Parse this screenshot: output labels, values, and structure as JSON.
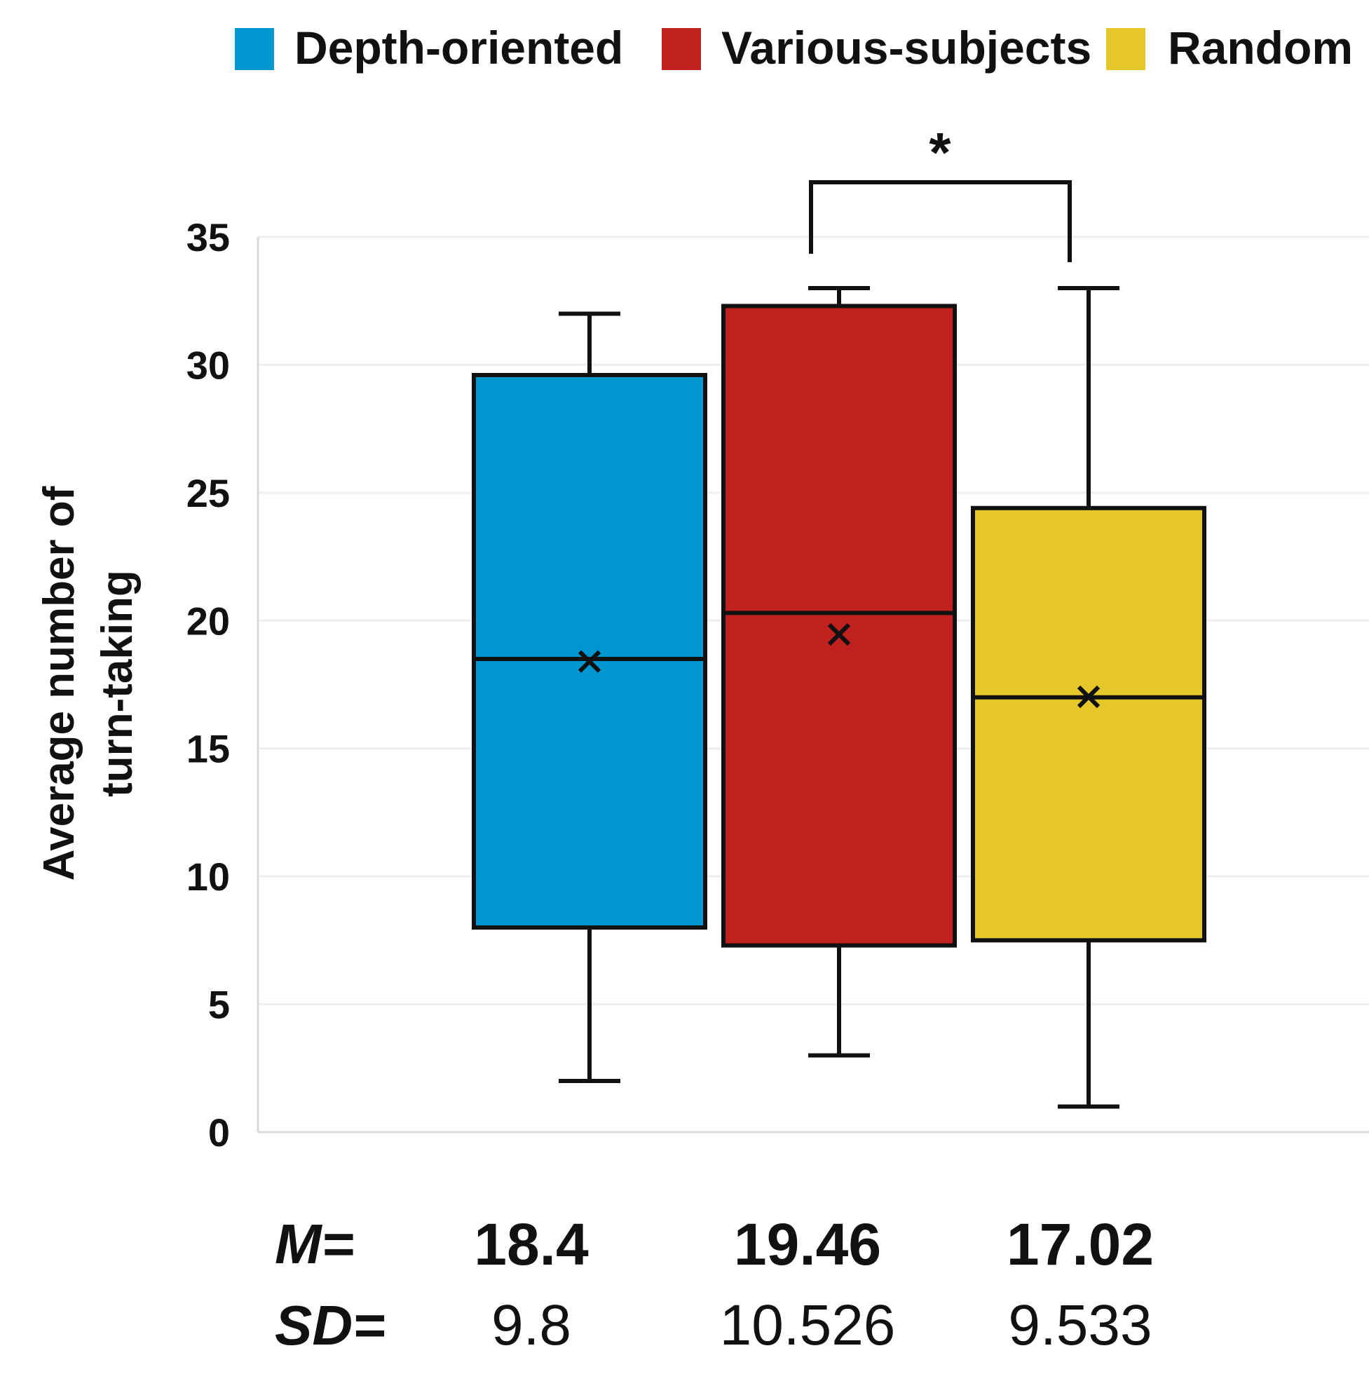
{
  "chart_data": {
    "type": "box",
    "ylabel_lines": [
      "Average number of",
      "turn-taking"
    ],
    "ylim": [
      0,
      35
    ],
    "yticks": [
      0,
      5,
      10,
      15,
      20,
      25,
      30,
      35
    ],
    "grid": true,
    "legend_position": "top-right",
    "series": [
      {
        "name": "Depth-oriented",
        "color": "#0097d1",
        "min": 2,
        "q1": 8,
        "median": 18.5,
        "q3": 29.6,
        "max": 32,
        "mean": 18.4,
        "sd": 9.8
      },
      {
        "name": "Various-subjects",
        "color": "#c0211e",
        "min": 3,
        "q1": 7.3,
        "median": 20.3,
        "q3": 32.3,
        "max": 33,
        "mean": 19.46,
        "sd": 10.526
      },
      {
        "name": "Random",
        "color": "#e6c72a",
        "min": 1,
        "q1": 7.5,
        "median": 17,
        "q3": 24.4,
        "max": 33,
        "mean": 17.02,
        "sd": 9.533
      }
    ],
    "mean_display": [
      "18.4",
      "19.46",
      "17.02"
    ],
    "sd_display": [
      "9.8",
      "10.526",
      "9.533"
    ],
    "significance": {
      "between": [
        "Various-subjects",
        "Random"
      ],
      "label": "*"
    },
    "stat_labels": {
      "mean": "M=",
      "sd": "SD="
    }
  }
}
